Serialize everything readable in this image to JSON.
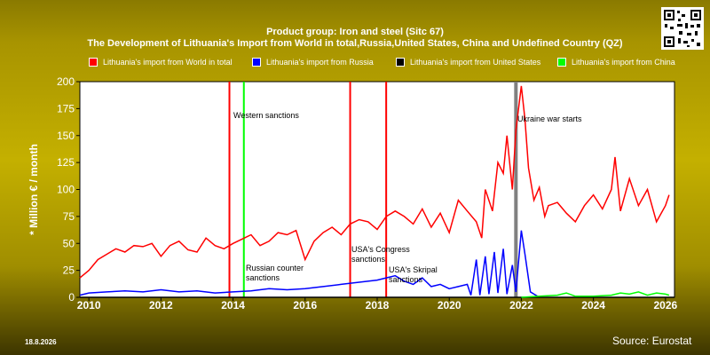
{
  "title_line1": "Product group: Iron and steel (Sitc 67)",
  "title_line2": "The Development of Lithuania's Import from World in total,Russia,United States, China and Undefined Country (QZ)",
  "date": "18.8.2026",
  "source": "Source: Eurostat",
  "chart_data": {
    "type": "line",
    "ylabel": "* Million € / month",
    "xlabel": "",
    "ylim": [
      0,
      200
    ],
    "xlim": [
      2009.75,
      2026.25
    ],
    "x_ticks": [
      2010,
      2012,
      2014,
      2016,
      2018,
      2020,
      2022,
      2024,
      2026
    ],
    "y_ticks": [
      0,
      25,
      50,
      75,
      100,
      125,
      150,
      175,
      200
    ],
    "grid": false,
    "legend_position": "top",
    "series": [
      {
        "name": "Lithuania's import from World in total",
        "color": "#ff0000",
        "x": [
          2009.75,
          2010.0,
          2010.25,
          2010.5,
          2010.75,
          2011.0,
          2011.25,
          2011.5,
          2011.75,
          2012.0,
          2012.25,
          2012.5,
          2012.75,
          2013.0,
          2013.25,
          2013.5,
          2013.75,
          2014.0,
          2014.25,
          2014.5,
          2014.75,
          2015.0,
          2015.25,
          2015.5,
          2015.75,
          2016.0,
          2016.25,
          2016.5,
          2016.75,
          2017.0,
          2017.25,
          2017.5,
          2017.75,
          2018.0,
          2018.25,
          2018.5,
          2018.75,
          2019.0,
          2019.25,
          2019.5,
          2019.75,
          2020.0,
          2020.25,
          2020.5,
          2020.75,
          2020.9,
          2021.0,
          2021.2,
          2021.35,
          2021.5,
          2021.6,
          2021.75,
          2021.85,
          2022.0,
          2022.1,
          2022.2,
          2022.35,
          2022.5,
          2022.65,
          2022.75,
          2023.0,
          2023.25,
          2023.5,
          2023.75,
          2024.0,
          2024.25,
          2024.5,
          2024.6,
          2024.75,
          2025.0,
          2025.25,
          2025.5,
          2025.75,
          2026.0,
          2026.1
        ],
        "values": [
          18,
          25,
          35,
          40,
          45,
          42,
          48,
          47,
          50,
          38,
          48,
          52,
          44,
          42,
          55,
          48,
          45,
          50,
          54,
          58,
          48,
          52,
          60,
          58,
          62,
          35,
          52,
          60,
          65,
          58,
          68,
          72,
          70,
          63,
          75,
          80,
          75,
          68,
          82,
          65,
          78,
          60,
          90,
          80,
          70,
          55,
          100,
          80,
          125,
          115,
          150,
          100,
          155,
          196,
          165,
          120,
          90,
          102,
          75,
          85,
          88,
          78,
          70,
          85,
          95,
          82,
          100,
          130,
          80,
          110,
          85,
          100,
          70,
          85,
          95
        ]
      },
      {
        "name": "Lithuania's import from Russia",
        "color": "#0000ff",
        "x": [
          2009.75,
          2010.0,
          2010.5,
          2011.0,
          2011.5,
          2012.0,
          2012.5,
          2013.0,
          2013.5,
          2014.0,
          2014.5,
          2015.0,
          2015.5,
          2016.0,
          2016.5,
          2017.0,
          2017.5,
          2018.0,
          2018.25,
          2018.5,
          2018.75,
          2019.0,
          2019.25,
          2019.5,
          2019.75,
          2020.0,
          2020.25,
          2020.5,
          2020.6,
          2020.75,
          2020.85,
          2021.0,
          2021.1,
          2021.25,
          2021.35,
          2021.5,
          2021.6,
          2021.75,
          2021.85,
          2022.0,
          2022.1,
          2022.25,
          2022.5
        ],
        "values": [
          2,
          4,
          5,
          6,
          5,
          7,
          5,
          6,
          4,
          5,
          6,
          8,
          7,
          8,
          10,
          12,
          14,
          16,
          18,
          20,
          15,
          12,
          18,
          10,
          12,
          8,
          10,
          12,
          2,
          35,
          2,
          38,
          3,
          42,
          4,
          45,
          3,
          30,
          5,
          62,
          40,
          5,
          0
        ]
      },
      {
        "name": "Lithuania's import from United States",
        "color": "#000000",
        "x": [
          2009.75,
          2026.25
        ],
        "values": [
          0,
          0
        ]
      },
      {
        "name": "Lithuania's import from China",
        "color": "#00ff00",
        "x": [
          2022.0,
          2022.5,
          2023.0,
          2023.25,
          2023.5,
          2024.0,
          2024.5,
          2024.75,
          2025.0,
          2025.25,
          2025.5,
          2025.75,
          2026.0,
          2026.1
        ],
        "values": [
          0,
          1,
          2,
          4,
          1,
          1,
          2,
          4,
          3,
          5,
          2,
          4,
          3,
          2
        ]
      }
    ],
    "events": [
      {
        "x": 2013.9,
        "color": "#ff0000",
        "label": ""
      },
      {
        "x": 2014.3,
        "color": "#00ff00",
        "label": "Western sanctions"
      },
      {
        "x": 2014.3,
        "color": "#00ff00",
        "label": "Russian counter sanctions"
      },
      {
        "x": 2017.25,
        "color": "#ff0000",
        "label": "USA's Congress sanctions"
      },
      {
        "x": 2018.25,
        "color": "#ff0000",
        "label": "USA's Skripal sanctions"
      },
      {
        "x": 2021.85,
        "color": "#808080",
        "label": "Ukraine war starts"
      }
    ]
  }
}
